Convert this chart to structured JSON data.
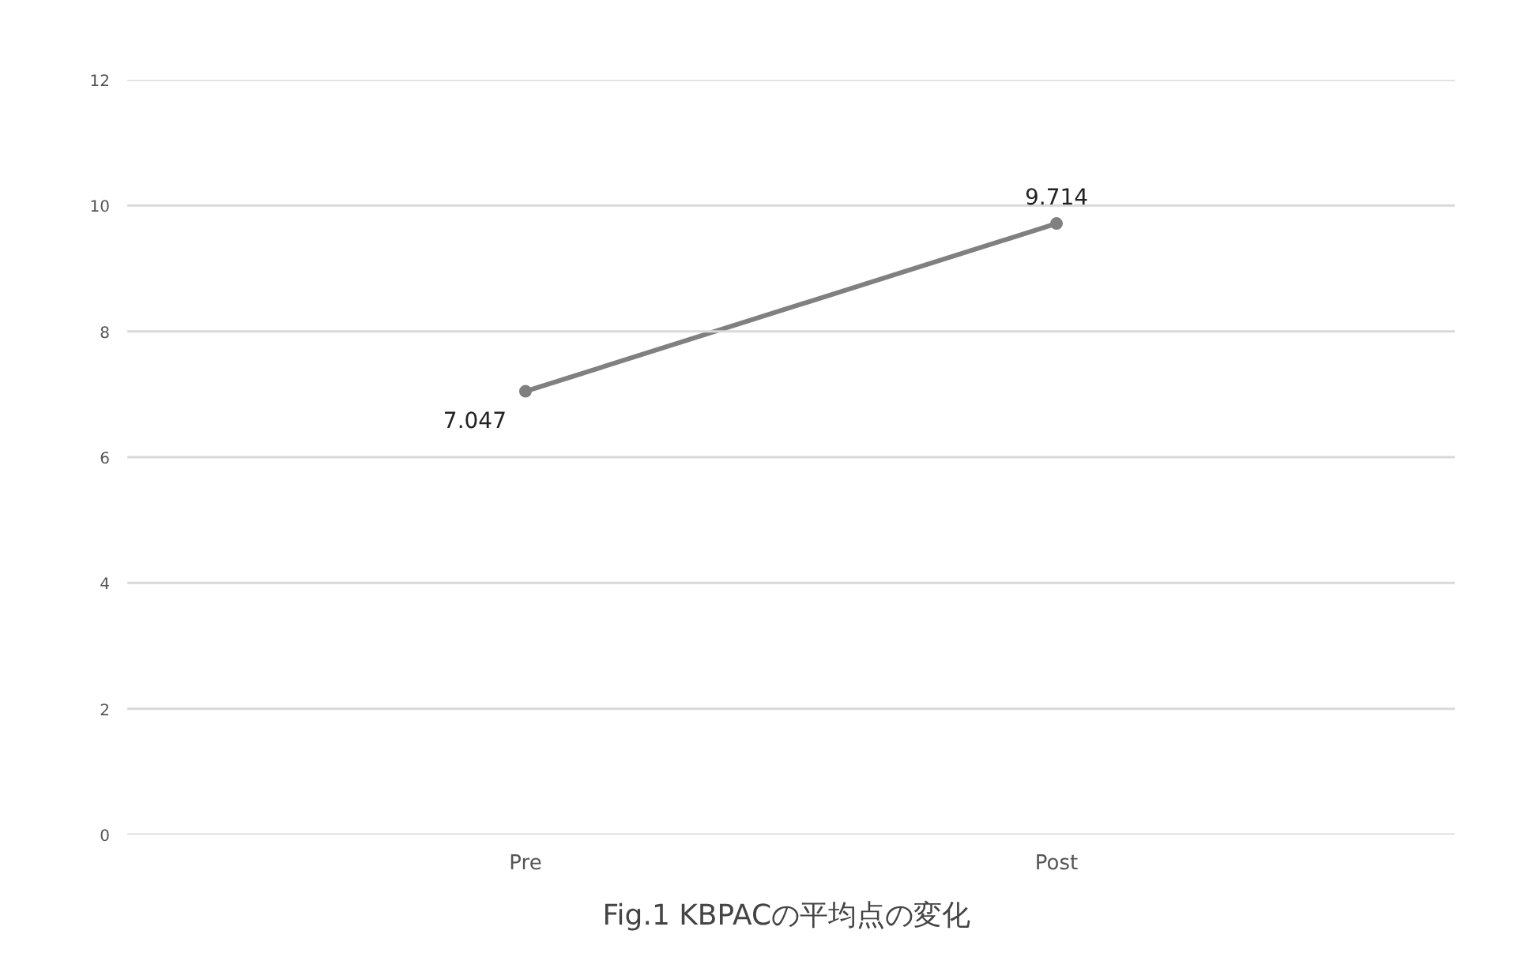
{
  "chart_data": {
    "type": "line",
    "categories": [
      "Pre",
      "Post"
    ],
    "series": [
      {
        "color": "#808080",
        "values": [
          7.047,
          9.714
        ]
      }
    ],
    "ylim": [
      0,
      12
    ],
    "yticks": [
      0,
      2,
      4,
      6,
      8,
      10,
      12
    ],
    "grid": "y",
    "marker": "circle",
    "line_style": "solid",
    "data_labels": true,
    "annotations": [
      "Fig.1  KBPACの平均点の変化"
    ]
  }
}
